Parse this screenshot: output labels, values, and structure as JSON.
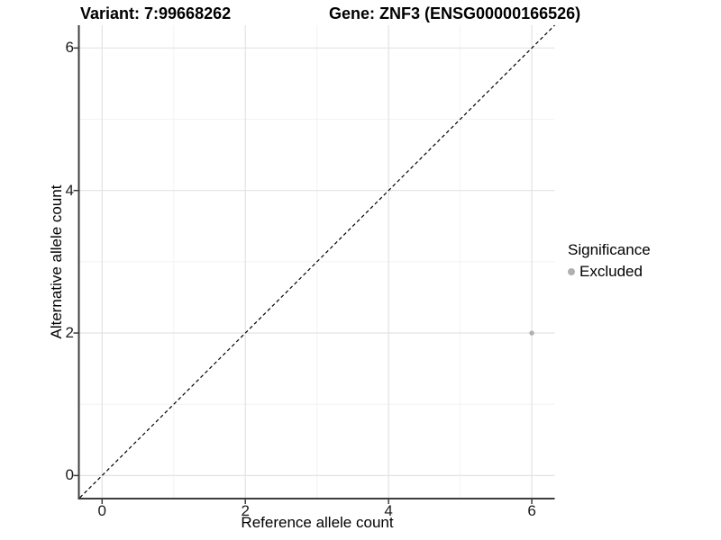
{
  "title": {
    "variant": "Variant: 7:99668262",
    "gene": "Gene: ZNF3 (ENSG00000166526)"
  },
  "chart_data": {
    "type": "scatter",
    "xlabel": "Reference allele count",
    "ylabel": "Alternative allele count",
    "xticks": [
      0,
      2,
      4,
      6
    ],
    "yticks": [
      0,
      2,
      4,
      6
    ],
    "minor_ticks": [
      1,
      3,
      5
    ],
    "xlim": [
      -0.312,
      6.32
    ],
    "ylim": [
      -0.311,
      6.32
    ],
    "grid": "major and minor gridlines on white background",
    "points": [
      {
        "x": 6,
        "y": 2,
        "series": "Excluded"
      }
    ],
    "reference_line": {
      "type": "identity",
      "style": "dashed",
      "from": [
        -0.31,
        -0.31
      ],
      "to": [
        6.32,
        6.32
      ]
    },
    "legend": {
      "title": "Significance",
      "position": "right",
      "items": [
        {
          "label": "Excluded",
          "color": "#b0b0b0"
        }
      ]
    }
  },
  "colors": {
    "point": "#b0b0b0",
    "major_grid": "#e3e3e3",
    "minor_grid": "#f2f2f2",
    "axis_line": "#3d3d3d",
    "dashed_line": "#000000",
    "tick_text": "#1a1a1a"
  }
}
